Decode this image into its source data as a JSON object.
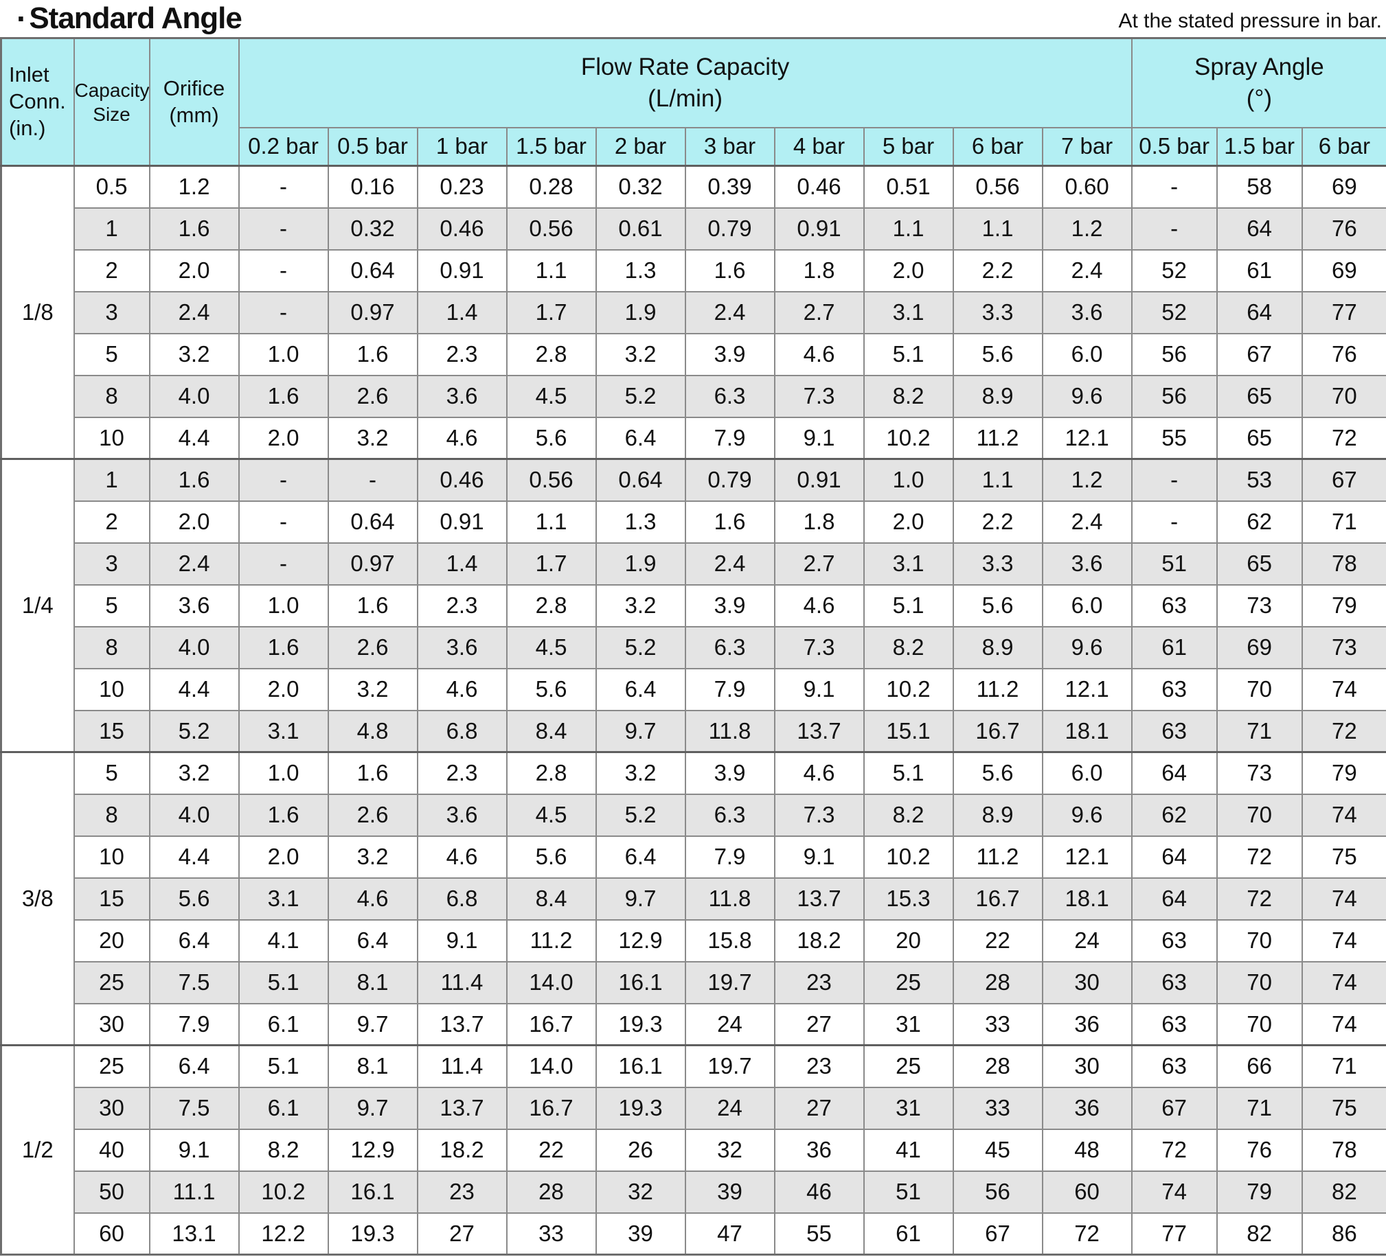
{
  "title": "Standard Angle",
  "title_bullet": "·",
  "note": "At the stated pressure in bar.",
  "colors": {
    "header_bg": "#b3eff3",
    "row_alt_bg": "#e4e4e4",
    "cell_border": "#8a8a8a",
    "group_border": "#5f5f5f"
  },
  "table": {
    "corner_headers": {
      "inlet": "Inlet\nConn.\n(in.)",
      "capacity": "Capacity\nSize",
      "orifice": "Orifice\n(mm)"
    },
    "group_headers": {
      "flow": "Flow Rate Capacity\n(L/min)",
      "spray": "Spray Angle\n(°)"
    },
    "pressure_headers": [
      "0.2 bar",
      "0.5 bar",
      "1 bar",
      "1.5 bar",
      "2 bar",
      "3 bar",
      "4 bar",
      "5 bar",
      "6 bar",
      "7 bar",
      "0.5 bar",
      "1.5 bar",
      "6 bar"
    ],
    "groups": [
      {
        "inlet": "1/8",
        "zebra_start": "white",
        "rows": [
          [
            "0.5",
            "1.2",
            "-",
            "0.16",
            "0.23",
            "0.28",
            "0.32",
            "0.39",
            "0.46",
            "0.51",
            "0.56",
            "0.60",
            "-",
            "58",
            "69"
          ],
          [
            "1",
            "1.6",
            "-",
            "0.32",
            "0.46",
            "0.56",
            "0.61",
            "0.79",
            "0.91",
            "1.1",
            "1.1",
            "1.2",
            "-",
            "64",
            "76"
          ],
          [
            "2",
            "2.0",
            "-",
            "0.64",
            "0.91",
            "1.1",
            "1.3",
            "1.6",
            "1.8",
            "2.0",
            "2.2",
            "2.4",
            "52",
            "61",
            "69"
          ],
          [
            "3",
            "2.4",
            "-",
            "0.97",
            "1.4",
            "1.7",
            "1.9",
            "2.4",
            "2.7",
            "3.1",
            "3.3",
            "3.6",
            "52",
            "64",
            "77"
          ],
          [
            "5",
            "3.2",
            "1.0",
            "1.6",
            "2.3",
            "2.8",
            "3.2",
            "3.9",
            "4.6",
            "5.1",
            "5.6",
            "6.0",
            "56",
            "67",
            "76"
          ],
          [
            "8",
            "4.0",
            "1.6",
            "2.6",
            "3.6",
            "4.5",
            "5.2",
            "6.3",
            "7.3",
            "8.2",
            "8.9",
            "9.6",
            "56",
            "65",
            "70"
          ],
          [
            "10",
            "4.4",
            "2.0",
            "3.2",
            "4.6",
            "5.6",
            "6.4",
            "7.9",
            "9.1",
            "10.2",
            "11.2",
            "12.1",
            "55",
            "65",
            "72"
          ]
        ]
      },
      {
        "inlet": "1/4",
        "zebra_start": "gray",
        "rows": [
          [
            "1",
            "1.6",
            "-",
            "-",
            "0.46",
            "0.56",
            "0.64",
            "0.79",
            "0.91",
            "1.0",
            "1.1",
            "1.2",
            "-",
            "53",
            "67"
          ],
          [
            "2",
            "2.0",
            "-",
            "0.64",
            "0.91",
            "1.1",
            "1.3",
            "1.6",
            "1.8",
            "2.0",
            "2.2",
            "2.4",
            "-",
            "62",
            "71"
          ],
          [
            "3",
            "2.4",
            "-",
            "0.97",
            "1.4",
            "1.7",
            "1.9",
            "2.4",
            "2.7",
            "3.1",
            "3.3",
            "3.6",
            "51",
            "65",
            "78"
          ],
          [
            "5",
            "3.6",
            "1.0",
            "1.6",
            "2.3",
            "2.8",
            "3.2",
            "3.9",
            "4.6",
            "5.1",
            "5.6",
            "6.0",
            "63",
            "73",
            "79"
          ],
          [
            "8",
            "4.0",
            "1.6",
            "2.6",
            "3.6",
            "4.5",
            "5.2",
            "6.3",
            "7.3",
            "8.2",
            "8.9",
            "9.6",
            "61",
            "69",
            "73"
          ],
          [
            "10",
            "4.4",
            "2.0",
            "3.2",
            "4.6",
            "5.6",
            "6.4",
            "7.9",
            "9.1",
            "10.2",
            "11.2",
            "12.1",
            "63",
            "70",
            "74"
          ],
          [
            "15",
            "5.2",
            "3.1",
            "4.8",
            "6.8",
            "8.4",
            "9.7",
            "11.8",
            "13.7",
            "15.1",
            "16.7",
            "18.1",
            "63",
            "71",
            "72"
          ]
        ]
      },
      {
        "inlet": "3/8",
        "zebra_start": "white",
        "rows": [
          [
            "5",
            "3.2",
            "1.0",
            "1.6",
            "2.3",
            "2.8",
            "3.2",
            "3.9",
            "4.6",
            "5.1",
            "5.6",
            "6.0",
            "64",
            "73",
            "79"
          ],
          [
            "8",
            "4.0",
            "1.6",
            "2.6",
            "3.6",
            "4.5",
            "5.2",
            "6.3",
            "7.3",
            "8.2",
            "8.9",
            "9.6",
            "62",
            "70",
            "74"
          ],
          [
            "10",
            "4.4",
            "2.0",
            "3.2",
            "4.6",
            "5.6",
            "6.4",
            "7.9",
            "9.1",
            "10.2",
            "11.2",
            "12.1",
            "64",
            "72",
            "75"
          ],
          [
            "15",
            "5.6",
            "3.1",
            "4.6",
            "6.8",
            "8.4",
            "9.7",
            "11.8",
            "13.7",
            "15.3",
            "16.7",
            "18.1",
            "64",
            "72",
            "74"
          ],
          [
            "20",
            "6.4",
            "4.1",
            "6.4",
            "9.1",
            "11.2",
            "12.9",
            "15.8",
            "18.2",
            "20",
            "22",
            "24",
            "63",
            "70",
            "74"
          ],
          [
            "25",
            "7.5",
            "5.1",
            "8.1",
            "11.4",
            "14.0",
            "16.1",
            "19.7",
            "23",
            "25",
            "28",
            "30",
            "63",
            "70",
            "74"
          ],
          [
            "30",
            "7.9",
            "6.1",
            "9.7",
            "13.7",
            "16.7",
            "19.3",
            "24",
            "27",
            "31",
            "33",
            "36",
            "63",
            "70",
            "74"
          ]
        ]
      },
      {
        "inlet": "1/2",
        "zebra_start": "white",
        "rows": [
          [
            "25",
            "6.4",
            "5.1",
            "8.1",
            "11.4",
            "14.0",
            "16.1",
            "19.7",
            "23",
            "25",
            "28",
            "30",
            "63",
            "66",
            "71"
          ],
          [
            "30",
            "7.5",
            "6.1",
            "9.7",
            "13.7",
            "16.7",
            "19.3",
            "24",
            "27",
            "31",
            "33",
            "36",
            "67",
            "71",
            "75"
          ],
          [
            "40",
            "9.1",
            "8.2",
            "12.9",
            "18.2",
            "22",
            "26",
            "32",
            "36",
            "41",
            "45",
            "48",
            "72",
            "76",
            "78"
          ],
          [
            "50",
            "11.1",
            "10.2",
            "16.1",
            "23",
            "28",
            "32",
            "39",
            "46",
            "51",
            "56",
            "60",
            "74",
            "79",
            "82"
          ],
          [
            "60",
            "13.1",
            "12.2",
            "19.3",
            "27",
            "33",
            "39",
            "47",
            "55",
            "61",
            "67",
            "72",
            "77",
            "82",
            "86"
          ]
        ]
      }
    ]
  }
}
